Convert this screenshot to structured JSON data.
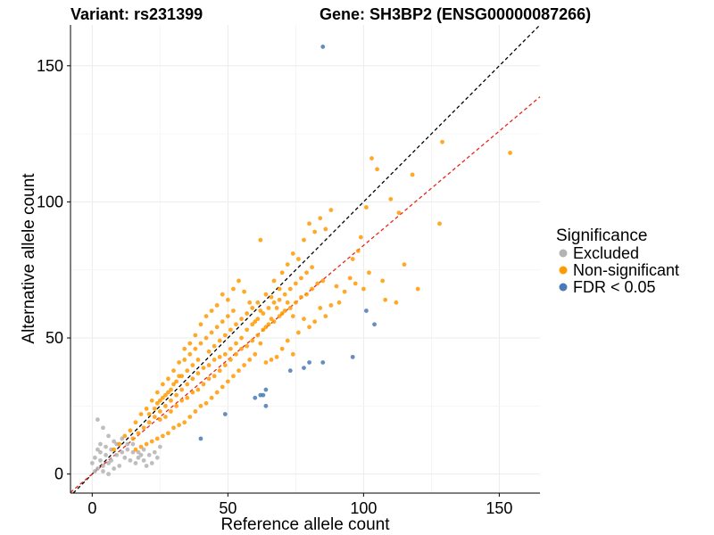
{
  "chart_data": {
    "type": "scatter",
    "title_left": "Variant: rs231399",
    "title_right": "Gene: SH3BP2 (ENSG00000087266)",
    "xlabel": "Reference allele count",
    "ylabel": "Alternative allele count",
    "xlim": [
      -8,
      165
    ],
    "ylim": [
      -7,
      165
    ],
    "xticks": [
      0,
      50,
      100,
      150
    ],
    "yticks": [
      0,
      50,
      100,
      150
    ],
    "grid": true,
    "legend": {
      "title": "Significance",
      "placement": "right",
      "entries": [
        {
          "label": "Excluded",
          "color": "#b3b3b3"
        },
        {
          "label": "Non-significant",
          "color": "#ff9a00"
        },
        {
          "label": "FDR < 0.05",
          "color": "#4a7ab5"
        }
      ]
    },
    "reference_lines": [
      {
        "name": "identity",
        "slope": 1,
        "intercept": 0,
        "color": "#000000",
        "dash": true
      },
      {
        "name": "fit",
        "slope": 0.84,
        "intercept": 0,
        "color": "#e8251b",
        "dash": true
      }
    ],
    "series": [
      {
        "name": "FDR < 0.05",
        "color": "#4a7ab5",
        "points": [
          [
            85,
            157
          ],
          [
            104,
            55
          ],
          [
            101,
            60
          ],
          [
            96,
            43
          ],
          [
            85,
            41
          ],
          [
            80,
            41
          ],
          [
            78,
            39
          ],
          [
            73,
            38
          ],
          [
            64,
            31
          ],
          [
            62,
            29
          ],
          [
            60,
            28
          ],
          [
            64,
            25
          ],
          [
            49,
            22
          ],
          [
            40,
            13
          ],
          [
            63,
            29
          ]
        ]
      },
      {
        "name": "Non-significant",
        "color": "#ff9a00",
        "points": [
          [
            154,
            118
          ],
          [
            129,
            122
          ],
          [
            128,
            92
          ],
          [
            118,
            110
          ],
          [
            113,
            96
          ],
          [
            110,
            101
          ],
          [
            105,
            112
          ],
          [
            103,
            116
          ],
          [
            101,
            98
          ],
          [
            99,
            87
          ],
          [
            98,
            82
          ],
          [
            96,
            79
          ],
          [
            95,
            72
          ],
          [
            93,
            67
          ],
          [
            91,
            63
          ],
          [
            88,
            97
          ],
          [
            86,
            90
          ],
          [
            84,
            94
          ],
          [
            82,
            89
          ],
          [
            80,
            92
          ],
          [
            78,
            86
          ],
          [
            76,
            79
          ],
          [
            74,
            81
          ],
          [
            72,
            77
          ],
          [
            70,
            74
          ],
          [
            69,
            68
          ],
          [
            67,
            71
          ],
          [
            66,
            65
          ],
          [
            64,
            66
          ],
          [
            62,
            86
          ],
          [
            120,
            68
          ],
          [
            115,
            77
          ],
          [
            112,
            63
          ],
          [
            108,
            64
          ],
          [
            107,
            71
          ],
          [
            102,
            74
          ],
          [
            100,
            68
          ],
          [
            97,
            70
          ],
          [
            90,
            69
          ],
          [
            88,
            62
          ],
          [
            86,
            58
          ],
          [
            84,
            61
          ],
          [
            82,
            56
          ],
          [
            80,
            54
          ],
          [
            78,
            57
          ],
          [
            76,
            52
          ],
          [
            74,
            58
          ],
          [
            72,
            63
          ],
          [
            70,
            59
          ],
          [
            68,
            61
          ],
          [
            66,
            57
          ],
          [
            64,
            54
          ],
          [
            62,
            60
          ],
          [
            60,
            56
          ],
          [
            58,
            63
          ],
          [
            56,
            67
          ],
          [
            54,
            71
          ],
          [
            52,
            68
          ],
          [
            50,
            64
          ],
          [
            48,
            66
          ],
          [
            46,
            62
          ],
          [
            44,
            60
          ],
          [
            42,
            58
          ],
          [
            40,
            55
          ],
          [
            38,
            51
          ],
          [
            36,
            48
          ],
          [
            34,
            46
          ],
          [
            32,
            41
          ],
          [
            30,
            38
          ],
          [
            28,
            35
          ],
          [
            26,
            33
          ],
          [
            24,
            30
          ],
          [
            22,
            27
          ],
          [
            20,
            24
          ],
          [
            18,
            22
          ],
          [
            16,
            19
          ],
          [
            14,
            16
          ],
          [
            12,
            14
          ],
          [
            10,
            11
          ],
          [
            8,
            9
          ],
          [
            62,
            48
          ],
          [
            60,
            44
          ],
          [
            58,
            42
          ],
          [
            56,
            40
          ],
          [
            54,
            38
          ],
          [
            52,
            36
          ],
          [
            50,
            34
          ],
          [
            48,
            32
          ],
          [
            46,
            30
          ],
          [
            44,
            28
          ],
          [
            42,
            26
          ],
          [
            40,
            25
          ],
          [
            38,
            23
          ],
          [
            36,
            21
          ],
          [
            34,
            19
          ],
          [
            32,
            18
          ],
          [
            30,
            17
          ],
          [
            28,
            15
          ],
          [
            26,
            14
          ],
          [
            24,
            13
          ],
          [
            22,
            12
          ],
          [
            20,
            11
          ],
          [
            18,
            10
          ],
          [
            16,
            9
          ],
          [
            70,
            46
          ],
          [
            72,
            49
          ],
          [
            74,
            44
          ],
          [
            68,
            43
          ],
          [
            66,
            42
          ],
          [
            64,
            41
          ],
          [
            55,
            50
          ],
          [
            53,
            48
          ],
          [
            51,
            46
          ],
          [
            49,
            44
          ],
          [
            47,
            43
          ],
          [
            45,
            42
          ],
          [
            43,
            40
          ],
          [
            41,
            39
          ],
          [
            39,
            37
          ],
          [
            37,
            35
          ],
          [
            35,
            33
          ],
          [
            33,
            31
          ],
          [
            31,
            29
          ],
          [
            29,
            27
          ],
          [
            27,
            25
          ],
          [
            25,
            23
          ],
          [
            23,
            21
          ],
          [
            21,
            19
          ],
          [
            19,
            17
          ],
          [
            17,
            15
          ],
          [
            15,
            13
          ],
          [
            57,
            53
          ],
          [
            59,
            55
          ],
          [
            61,
            57
          ],
          [
            63,
            59
          ],
          [
            65,
            61
          ],
          [
            67,
            63
          ],
          [
            69,
            64
          ],
          [
            71,
            66
          ],
          [
            73,
            68
          ],
          [
            75,
            70
          ],
          [
            77,
            72
          ],
          [
            79,
            74
          ],
          [
            81,
            76
          ],
          [
            36,
            44
          ],
          [
            34,
            42
          ],
          [
            38,
            46
          ],
          [
            40,
            48
          ],
          [
            42,
            50
          ],
          [
            44,
            52
          ],
          [
            46,
            54
          ],
          [
            48,
            56
          ],
          [
            50,
            58
          ],
          [
            52,
            60
          ],
          [
            30,
            33
          ],
          [
            28,
            30
          ],
          [
            32,
            36
          ],
          [
            26,
            28
          ],
          [
            24,
            26
          ],
          [
            45,
            36
          ],
          [
            47,
            38
          ],
          [
            49,
            40
          ],
          [
            51,
            42
          ],
          [
            53,
            44
          ],
          [
            55,
            46
          ],
          [
            57,
            47
          ],
          [
            59,
            49
          ],
          [
            61,
            51
          ],
          [
            63,
            53
          ],
          [
            65,
            55
          ],
          [
            67,
            56
          ],
          [
            69,
            58
          ],
          [
            71,
            60
          ],
          [
            73,
            61
          ],
          [
            75,
            63
          ],
          [
            77,
            65
          ],
          [
            79,
            66
          ],
          [
            81,
            68
          ],
          [
            83,
            70
          ],
          [
            85,
            71
          ],
          [
            35,
            28
          ],
          [
            37,
            30
          ],
          [
            39,
            31
          ],
          [
            41,
            33
          ],
          [
            43,
            35
          ],
          [
            33,
            27
          ],
          [
            31,
            25
          ],
          [
            29,
            23
          ],
          [
            27,
            21
          ],
          [
            25,
            20
          ],
          [
            43,
            45
          ],
          [
            45,
            47
          ],
          [
            47,
            49
          ],
          [
            49,
            51
          ],
          [
            51,
            53
          ],
          [
            53,
            55
          ],
          [
            55,
            57
          ],
          [
            57,
            59
          ],
          [
            59,
            61
          ],
          [
            61,
            63
          ],
          [
            39,
            42
          ],
          [
            37,
            40
          ],
          [
            35,
            38
          ],
          [
            33,
            36
          ],
          [
            31,
            34
          ],
          [
            29,
            31
          ],
          [
            27,
            29
          ],
          [
            25,
            27
          ],
          [
            23,
            24
          ],
          [
            21,
            22
          ]
        ]
      },
      {
        "name": "Excluded",
        "color": "#b3b3b3",
        "points": [
          [
            2,
            20
          ],
          [
            4,
            17
          ],
          [
            6,
            14
          ],
          [
            8,
            12
          ],
          [
            5,
            10
          ],
          [
            3,
            8
          ],
          [
            1,
            6
          ],
          [
            0,
            4
          ],
          [
            2,
            2
          ],
          [
            4,
            1
          ],
          [
            6,
            0
          ],
          [
            3,
            5
          ],
          [
            5,
            7
          ],
          [
            7,
            9
          ],
          [
            9,
            11
          ],
          [
            11,
            13
          ],
          [
            13,
            9
          ],
          [
            15,
            8
          ],
          [
            17,
            6
          ],
          [
            19,
            5
          ],
          [
            21,
            7
          ],
          [
            23,
            8
          ],
          [
            12,
            6
          ],
          [
            14,
            5
          ],
          [
            16,
            4
          ],
          [
            10,
            3
          ],
          [
            8,
            2
          ],
          [
            6,
            4
          ],
          [
            9,
            7
          ],
          [
            11,
            8
          ],
          [
            13,
            11
          ],
          [
            15,
            11
          ],
          [
            17,
            8
          ],
          [
            19,
            9
          ],
          [
            25,
            10
          ],
          [
            22,
            4
          ],
          [
            20,
            3
          ],
          [
            18,
            7
          ],
          [
            7,
            5
          ],
          [
            4,
            3
          ],
          [
            1,
            1
          ],
          [
            3,
            11
          ],
          [
            2,
            9
          ],
          [
            24,
            6
          ]
        ]
      }
    ]
  }
}
